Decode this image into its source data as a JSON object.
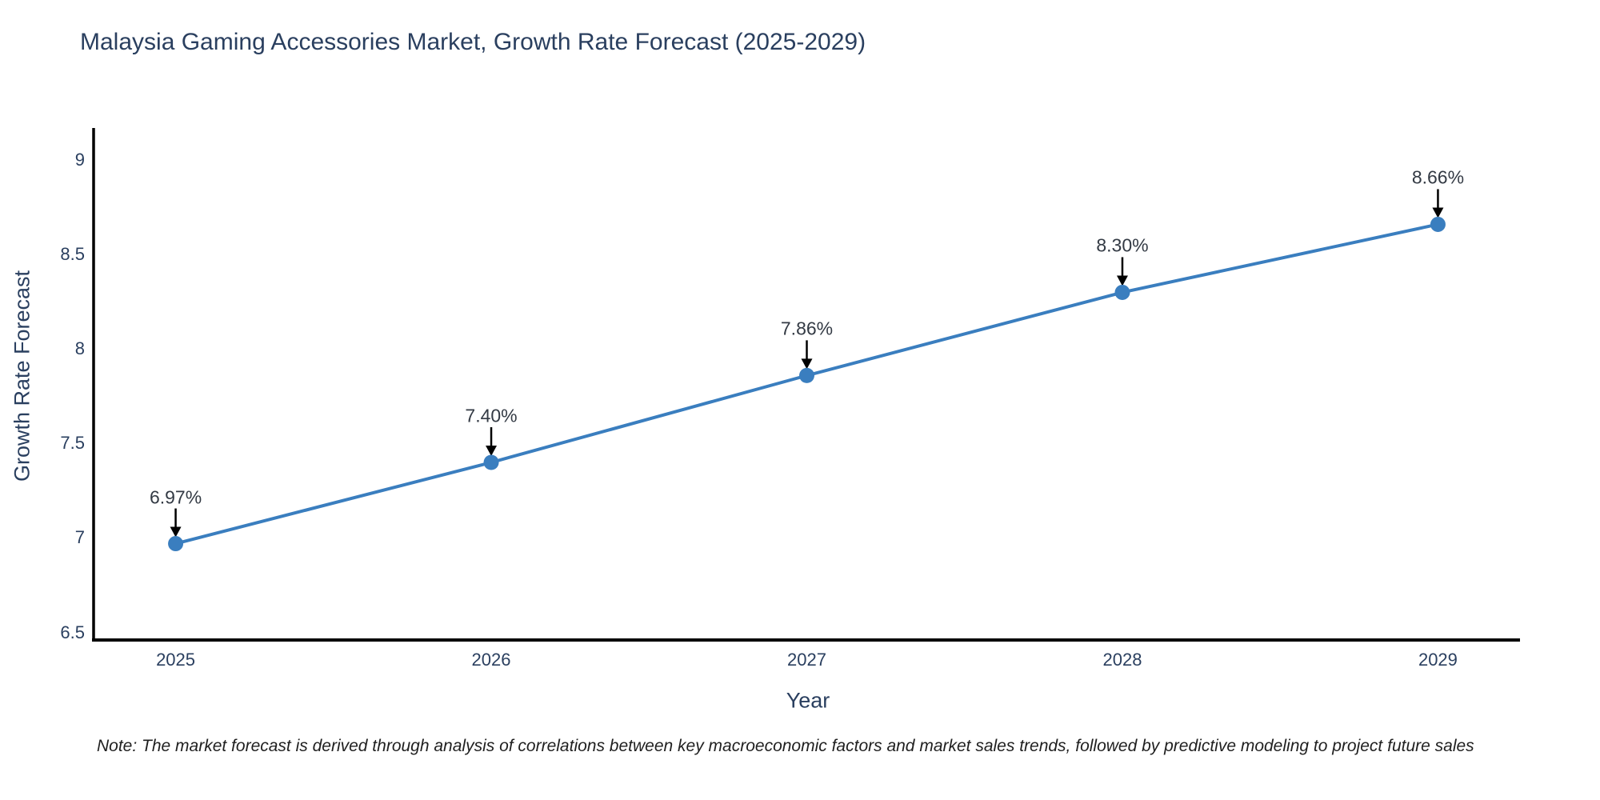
{
  "note": "Note: The market forecast is derived through analysis of correlations between key macroeconomic factors and market sales trends, followed by predictive modeling to project future sales",
  "chart_data": {
    "type": "line",
    "title": "Malaysia Gaming Accessories Market, Growth Rate Forecast (2025-2029)",
    "xlabel": "Year",
    "ylabel": "Growth Rate Forecast",
    "x": [
      2025,
      2026,
      2027,
      2028,
      2029
    ],
    "y": [
      6.97,
      7.4,
      7.86,
      8.3,
      8.66
    ],
    "point_labels": [
      "6.97%",
      "7.40%",
      "7.86%",
      "8.30%",
      "8.66%"
    ],
    "x_ticks": [
      "2025",
      "2026",
      "2027",
      "2028",
      "2029"
    ],
    "y_ticks": [
      "6.5",
      "7",
      "7.5",
      "8",
      "8.5",
      "9"
    ],
    "y_tick_values": [
      6.5,
      7,
      7.5,
      8,
      8.5,
      9
    ],
    "xlim": [
      2024.74,
      2029.26
    ],
    "ylim": [
      6.46,
      9.17
    ],
    "grid": false,
    "legend": "none",
    "colors": {
      "line": "#3a7ebf",
      "marker": "#3a7ebf",
      "axis": "#000000",
      "arrow": "#000000",
      "heading_text": "#2a3f5f",
      "annotation_text": "#333a44"
    }
  }
}
